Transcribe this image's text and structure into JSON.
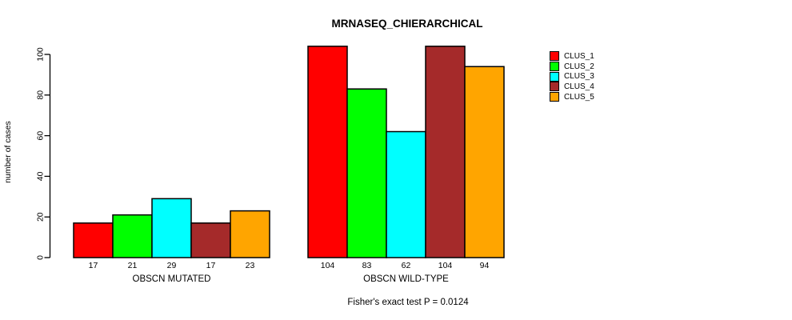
{
  "chart_data": {
    "type": "bar",
    "title": "MRNASEQ_CHIERARCHICAL",
    "ylabel": "number of cases",
    "xlabel": "",
    "ylim": [
      0,
      100
    ],
    "yticks": [
      0,
      20,
      40,
      60,
      80,
      100
    ],
    "grid": false,
    "legend_position": "right",
    "categories": [
      "OBSCN MUTATED",
      "OBSCN WILD-TYPE"
    ],
    "series": [
      {
        "name": "CLUS_1",
        "color": "#FF0000",
        "values": [
          17,
          104
        ]
      },
      {
        "name": "CLUS_2",
        "color": "#00FF00",
        "values": [
          21,
          83
        ]
      },
      {
        "name": "CLUS_3",
        "color": "#00FFFF",
        "values": [
          29,
          62
        ]
      },
      {
        "name": "CLUS_4",
        "color": "#A52A2A",
        "values": [
          17,
          104
        ]
      },
      {
        "name": "CLUS_5",
        "color": "#FFA500",
        "values": [
          23,
          94
        ]
      }
    ],
    "bar_value_labels": true,
    "annotation": "Fisher's exact test P = 0.0124"
  }
}
